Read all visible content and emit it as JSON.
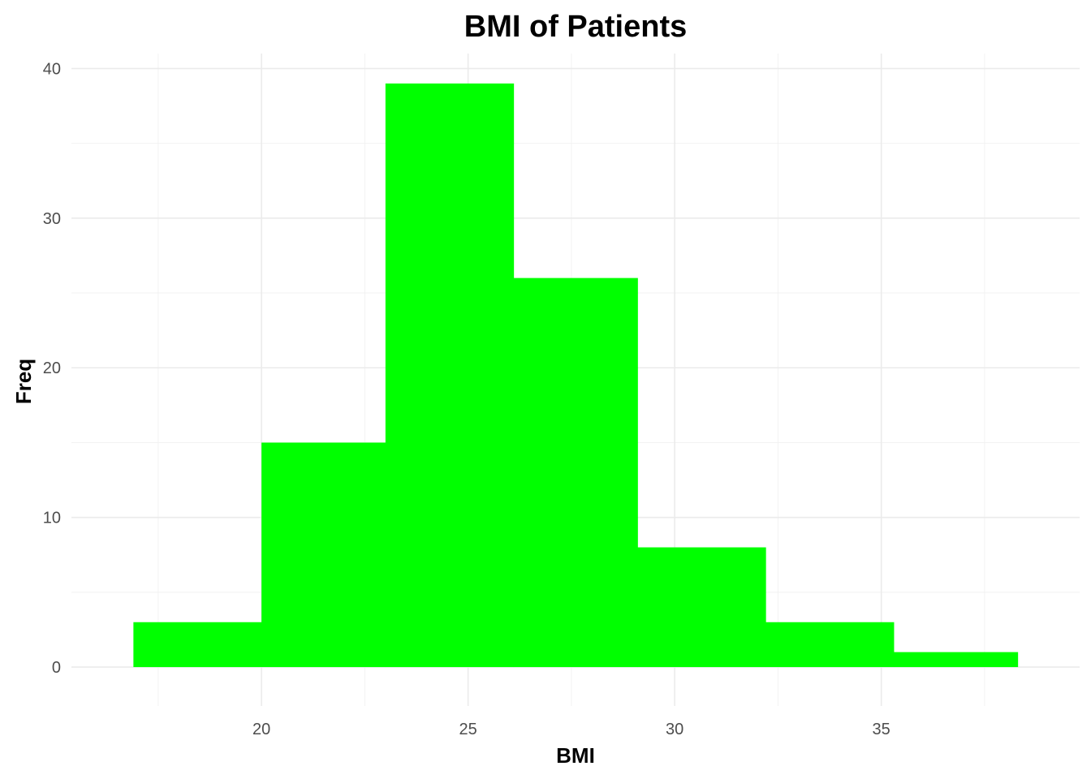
{
  "chart_data": {
    "type": "bar",
    "title": "BMI of Patients",
    "xlabel": "BMI",
    "ylabel": "Freq",
    "bin_edges": [
      16.9,
      20.0,
      23.0,
      26.1,
      29.1,
      32.2,
      35.3,
      38.3
    ],
    "values": [
      3,
      15,
      39,
      26,
      8,
      3,
      1
    ],
    "xlim": [
      15.4,
      39.8
    ],
    "ylim": [
      -2.6,
      41
    ],
    "x_ticks": [
      20,
      25,
      30,
      35
    ],
    "x_minor_ticks": [
      17.5,
      22.5,
      27.5,
      32.5,
      37.5
    ],
    "y_ticks": [
      0,
      10,
      20,
      30,
      40
    ],
    "y_minor_ticks": [
      5,
      15,
      25,
      35
    ],
    "bar_color": "#00ff00",
    "grid": true,
    "legend": "none"
  }
}
